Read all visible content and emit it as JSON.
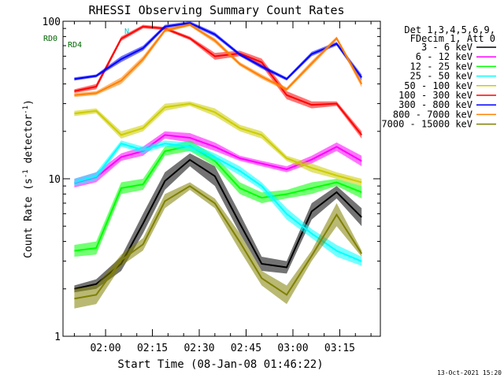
{
  "chart_data": {
    "type": "line",
    "title": "RHESSI Observing Summary Count Rates",
    "xlabel": "Start Time (08-Jan-08 01:46:22)",
    "ylabel": "Count Rate (s",
    "ylabel_sup": "-1",
    "ylabel_tail": " detector",
    "ylabel_tail_sup": "-1",
    "ylabel_close": ")",
    "y_scale": "log",
    "ylim": [
      1,
      100
    ],
    "xlim": [
      "01:46:22",
      "03:28:00"
    ],
    "x_ticks": [
      "02:00",
      "02:15",
      "02:30",
      "02:45",
      "03:00",
      "03:15"
    ],
    "y_ticks": [
      "1",
      "10",
      "100"
    ],
    "legend": {
      "placement": "right",
      "header_line1": "Det 1,3,4,5,6,9,",
      "header_line2": "FDecim 1, Att 0"
    },
    "annotations": {
      "rd0": "RD0",
      "rd4": "RD4",
      "n": "N"
    },
    "timestamp": "13-Oct-2021 15:20",
    "series": [
      {
        "name": "3 - 6 keV",
        "color": "#000000",
        "values": [
          [
            1.9,
            2.1
          ],
          [
            2.0,
            2.3
          ],
          [
            2.6,
            3.2
          ],
          [
            4.5,
            6
          ],
          [
            8.5,
            11
          ],
          [
            12,
            14.5
          ],
          [
            9,
            12
          ],
          [
            4.5,
            6
          ],
          [
            2.6,
            3.2
          ],
          [
            2.5,
            3
          ],
          [
            5.5,
            7
          ],
          [
            7.5,
            9
          ],
          [
            5,
            6.5
          ]
        ]
      },
      {
        "name": "6 - 12 keV",
        "color": "#ff00ff",
        "values": [
          [
            8.8,
            10
          ],
          [
            9.5,
            11
          ],
          [
            13,
            14.5
          ],
          [
            14,
            16
          ],
          [
            18,
            20
          ],
          [
            17,
            19.5
          ],
          [
            15,
            17
          ],
          [
            13,
            14
          ],
          [
            12,
            13
          ],
          [
            11,
            12
          ],
          [
            12.5,
            14
          ],
          [
            15,
            17
          ],
          [
            12,
            14
          ]
        ]
      },
      {
        "name": "12 - 25 keV",
        "color": "#00ff00",
        "values": [
          [
            3.2,
            3.8
          ],
          [
            3.3,
            4
          ],
          [
            8,
            9.5
          ],
          [
            8.5,
            10
          ],
          [
            14,
            16
          ],
          [
            15,
            17.5
          ],
          [
            12,
            14
          ],
          [
            8,
            9.5
          ],
          [
            7,
            8.2
          ],
          [
            7.5,
            8.5
          ],
          [
            8,
            9.5
          ],
          [
            9,
            10
          ],
          [
            7.5,
            9
          ]
        ]
      },
      {
        "name": "25 - 50 keV",
        "color": "#00ffff",
        "values": [
          [
            9,
            10
          ],
          [
            9.8,
            11
          ],
          [
            16,
            17.5
          ],
          [
            14.5,
            16
          ],
          [
            16,
            17.5
          ],
          [
            15,
            17
          ],
          [
            13,
            14.5
          ],
          [
            10.5,
            12
          ],
          [
            8.5,
            9.5
          ],
          [
            5.5,
            6.5
          ],
          [
            4.2,
            4.8
          ],
          [
            3.2,
            3.8
          ],
          [
            2.8,
            3.2
          ]
        ]
      },
      {
        "name": "50 - 100 keV",
        "color": "#cccc00",
        "values": [
          [
            25,
            27
          ],
          [
            26,
            28
          ],
          [
            18,
            20
          ],
          [
            20,
            22
          ],
          [
            27,
            30
          ],
          [
            29,
            31
          ],
          [
            25,
            28
          ],
          [
            20,
            22
          ],
          [
            18,
            20
          ],
          [
            13,
            14
          ],
          [
            11,
            12.5
          ],
          [
            10,
            11
          ],
          [
            9,
            10
          ]
        ]
      },
      {
        "name": "100 - 300 keV",
        "color": "#ff0000",
        "values": [
          [
            35,
            37
          ],
          [
            37,
            40
          ],
          [
            75,
            80
          ],
          [
            90,
            95
          ],
          [
            88,
            92
          ],
          [
            76,
            80
          ],
          [
            57,
            63
          ],
          [
            60,
            65
          ],
          [
            52,
            58
          ],
          [
            32,
            36
          ],
          [
            28,
            31
          ],
          [
            29,
            31
          ],
          [
            18,
            20
          ]
        ]
      },
      {
        "name": "300 - 800 keV",
        "color": "#0000ff",
        "values": [
          [
            42,
            44
          ],
          [
            44,
            46
          ],
          [
            55,
            60
          ],
          [
            65,
            70
          ],
          [
            90,
            95
          ],
          [
            95,
            100
          ],
          [
            80,
            85
          ],
          [
            60,
            63
          ],
          [
            50,
            53
          ],
          [
            42,
            44
          ],
          [
            60,
            64
          ],
          [
            70,
            74
          ],
          [
            42,
            46
          ]
        ]
      },
      {
        "name": "800 - 7000 keV",
        "color": "#ff8000",
        "values": [
          [
            33,
            35
          ],
          [
            34,
            36
          ],
          [
            40,
            44
          ],
          [
            55,
            60
          ],
          [
            85,
            90
          ],
          [
            93,
            97
          ],
          [
            73,
            78
          ],
          [
            52,
            55
          ],
          [
            43,
            46
          ],
          [
            36,
            38
          ],
          [
            52,
            56
          ],
          [
            76,
            80
          ],
          [
            38,
            42
          ]
        ]
      },
      {
        "name": "7000 - 15000 keV",
        "color": "#808000",
        "values": [
          [
            1.5,
            2
          ],
          [
            1.6,
            2.1
          ],
          [
            2.8,
            3.3
          ],
          [
            3.5,
            4.2
          ],
          [
            6.5,
            8
          ],
          [
            8.5,
            9.5
          ],
          [
            6.5,
            7.5
          ],
          [
            3.5,
            4.5
          ],
          [
            2.1,
            2.6
          ],
          [
            1.6,
            2.1
          ],
          [
            3,
            3.5
          ],
          [
            5,
            7
          ],
          [
            3.2,
            3.5
          ]
        ]
      }
    ],
    "x_samples": [
      "01:50",
      "01:57",
      "02:05",
      "02:12",
      "02:19",
      "02:27",
      "02:35",
      "02:43",
      "02:50",
      "02:58",
      "03:06",
      "03:14",
      "03:22"
    ]
  }
}
